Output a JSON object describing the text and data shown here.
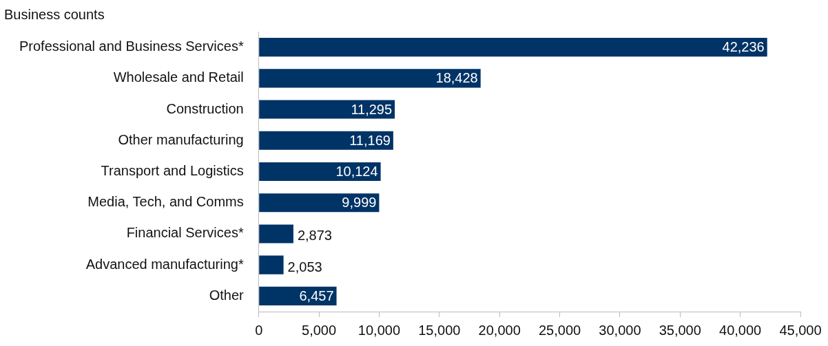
{
  "chart_data": {
    "type": "bar",
    "orientation": "horizontal",
    "title": "Business counts",
    "categories": [
      "Professional and Business Services*",
      "Wholesale and Retail",
      "Construction",
      "Other manufacturing",
      "Transport and Logistics",
      "Media, Tech, and Comms",
      "Financial Services*",
      "Advanced manufacturing*",
      "Other"
    ],
    "values": [
      42236,
      18428,
      11295,
      11169,
      10124,
      9999,
      2873,
      2053,
      6457
    ],
    "value_labels": [
      "42,236",
      "18,428",
      "11,295",
      "11,169",
      "10,124",
      "9,999",
      "2,873",
      "2,053",
      "6,457"
    ],
    "color": "#003366",
    "xlim": [
      0,
      45000
    ],
    "xticks": [
      {
        "value": 0,
        "label": "0"
      },
      {
        "value": 5000,
        "label": "5,000"
      },
      {
        "value": 10000,
        "label": "10,000"
      },
      {
        "value": 15000,
        "label": "15,000"
      },
      {
        "value": 20000,
        "label": "20,000"
      },
      {
        "value": 25000,
        "label": "25,000"
      },
      {
        "value": 30000,
        "label": "30,000"
      },
      {
        "value": 35000,
        "label": "35,000"
      },
      {
        "value": 40000,
        "label": "40,000"
      },
      {
        "value": 45000,
        "label": "45,000"
      }
    ],
    "grid": false,
    "legend": false
  }
}
